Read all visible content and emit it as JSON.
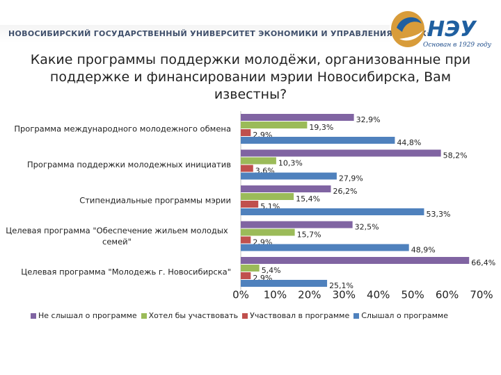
{
  "header": {
    "university_name": "НОВОСИБИРСКИЙ ГОСУДАРСТВЕННЫЙ УНИВЕРСИТЕТ ЭКОНОМИКИ И УПРАВЛЕНИЯ «НИНХ»",
    "logo_caption": "Основан в 1929 году"
  },
  "title": "Какие программы поддержки молодёжи, организованные при поддержке и финансировании мэрии Новосибирска, Вам известны?",
  "colors": {
    "purple": "#8064a2",
    "green": "#9bbb59",
    "red": "#c0504d",
    "blue": "#4f81bd"
  },
  "chart_data": {
    "type": "bar",
    "orientation": "horizontal",
    "categories": [
      "Программа международного молодежного обмена",
      "Программа поддержки молодежных инициатив",
      "Стипендиальные программы мэрии",
      "Целевая программа \"Обеспечение жильем молодых семей\"",
      "Целевая программа \"Молодежь г. Новосибирска\""
    ],
    "category_display_lines": [
      [
        "Программа международного молодежного обмена"
      ],
      [
        "Программа поддержки молодежных инициатив"
      ],
      [
        "Стипендиальные программы мэрии"
      ],
      [
        "Целевая программа \"Обеспечение жильем молодых",
        "семей\""
      ],
      [
        "Целевая программа \"Молодежь г. Новосибирска\""
      ]
    ],
    "series": [
      {
        "name": "Не слышал о программе",
        "color": "#8064a2",
        "values": [
          32.9,
          58.2,
          26.2,
          32.5,
          66.4
        ],
        "labels": [
          "32,9%",
          "58,2%",
          "26,2%",
          "32,5%",
          "66,4%"
        ]
      },
      {
        "name": "Хотел бы участвовать",
        "color": "#9bbb59",
        "values": [
          19.3,
          10.3,
          15.4,
          15.7,
          5.4
        ],
        "labels": [
          "19,3%",
          "10,3%",
          "15,4%",
          "15,7%",
          "5,4%"
        ]
      },
      {
        "name": "Участвовал в программе",
        "color": "#c0504d",
        "values": [
          2.9,
          3.6,
          5.1,
          2.9,
          2.9
        ],
        "labels": [
          "2,9%",
          "3,6%",
          "5,1%",
          "2,9%",
          "2,9%"
        ]
      },
      {
        "name": "Слышал о программе",
        "color": "#4f81bd",
        "values": [
          44.8,
          27.9,
          53.3,
          48.9,
          25.1
        ],
        "labels": [
          "44,8%",
          "27,9%",
          "53,3%",
          "48,9%",
          "25,1%"
        ]
      }
    ],
    "xlim": [
      0,
      70
    ],
    "xticks": [
      0,
      10,
      20,
      30,
      40,
      50,
      60,
      70
    ],
    "xtick_labels": [
      "0%",
      "10%",
      "20%",
      "30%",
      "40%",
      "50%",
      "60%",
      "70%"
    ],
    "legend_position": "bottom"
  }
}
